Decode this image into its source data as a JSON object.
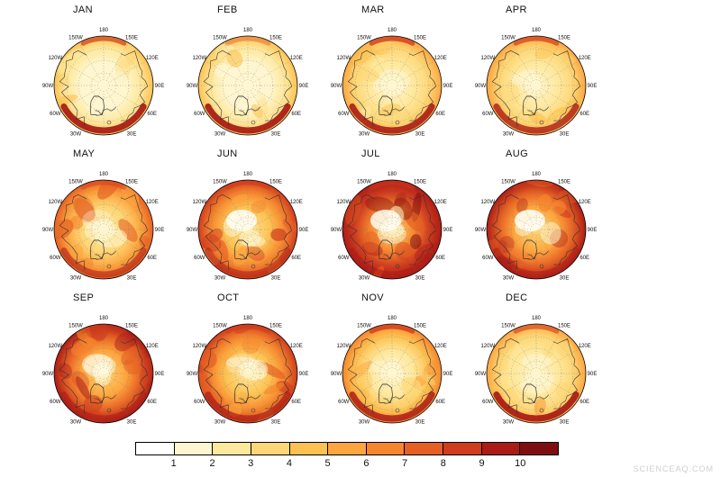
{
  "figure": {
    "maps": [
      {
        "label": "JAN",
        "level": 2,
        "south_band": 0.95,
        "north_band": 0.7,
        "center_pale": 0
      },
      {
        "label": "FEB",
        "level": 2,
        "south_band": 0.95,
        "north_band": 0.35,
        "center_pale": 0
      },
      {
        "label": "MAR",
        "level": 3,
        "south_band": 0.9,
        "north_band": 0.8,
        "center_pale": 0
      },
      {
        "label": "APR",
        "level": 3,
        "south_band": 0.8,
        "north_band": 0.7,
        "center_pale": 0
      },
      {
        "label": "MAY",
        "level": 5,
        "south_band": 0.55,
        "north_band": 0.45,
        "center_pale": 0.3
      },
      {
        "label": "JUN",
        "level": 6,
        "south_band": 0.5,
        "north_band": 0.6,
        "center_pale": 0.9
      },
      {
        "label": "JUL",
        "level": 8,
        "south_band": 0.55,
        "north_band": 0.5,
        "center_pale": 0.85
      },
      {
        "label": "AUG",
        "level": 7,
        "south_band": 0.55,
        "north_band": 0.45,
        "center_pale": 0.9
      },
      {
        "label": "SEP",
        "level": 7,
        "south_band": 0.6,
        "north_band": 0.35,
        "center_pale": 0.5
      },
      {
        "label": "OCT",
        "level": 6,
        "south_band": 0.7,
        "north_band": 0.6,
        "center_pale": 0.25
      },
      {
        "label": "NOV",
        "level": 4,
        "south_band": 0.85,
        "north_band": 0.8,
        "center_pale": 0
      },
      {
        "label": "DEC",
        "level": 3,
        "south_band": 0.95,
        "north_band": 0.6,
        "center_pale": 0
      }
    ],
    "lon_labels": [
      {
        "text": "180",
        "angle": 0
      },
      {
        "text": "150E",
        "angle": 30
      },
      {
        "text": "120E",
        "angle": 60
      },
      {
        "text": "90E",
        "angle": 90
      },
      {
        "text": "60E",
        "angle": 120
      },
      {
        "text": "30E",
        "angle": 150
      },
      {
        "text": "30W",
        "angle": 210
      },
      {
        "text": "60W",
        "angle": 240
      },
      {
        "text": "90W",
        "angle": 270
      },
      {
        "text": "120W",
        "angle": 300
      },
      {
        "text": "150W",
        "angle": 330
      }
    ],
    "colorbar": {
      "ticks": [
        "1",
        "2",
        "3",
        "4",
        "5",
        "6",
        "7",
        "8",
        "9",
        "10"
      ],
      "colors": [
        "#ffffff",
        "#fef6d0",
        "#fee89d",
        "#fdd777",
        "#fdc252",
        "#fda63f",
        "#f6862e",
        "#e66023",
        "#cf3c1e",
        "#ab1c17",
        "#7f0e11"
      ]
    },
    "watermark": "SCIENCEAQ.COM"
  },
  "chart_data": {
    "type": "heatmap",
    "title": "",
    "panels": [
      "JAN",
      "FEB",
      "MAR",
      "APR",
      "MAY",
      "JUN",
      "JUL",
      "AUG",
      "SEP",
      "OCT",
      "NOV",
      "DEC"
    ],
    "projection": "north-polar-stereographic",
    "legend_ticks": [
      1,
      2,
      3,
      4,
      5,
      6,
      7,
      8,
      9,
      10
    ],
    "panel_mean_level": {
      "JAN": 2,
      "FEB": 2,
      "MAR": 3,
      "APR": 3,
      "MAY": 5,
      "JUN": 6,
      "JUL": 8,
      "AUG": 7,
      "SEP": 7,
      "OCT": 6,
      "NOV": 4,
      "DEC": 3
    },
    "colorbar_range": [
      1,
      10
    ],
    "legend_position": "bottom"
  }
}
